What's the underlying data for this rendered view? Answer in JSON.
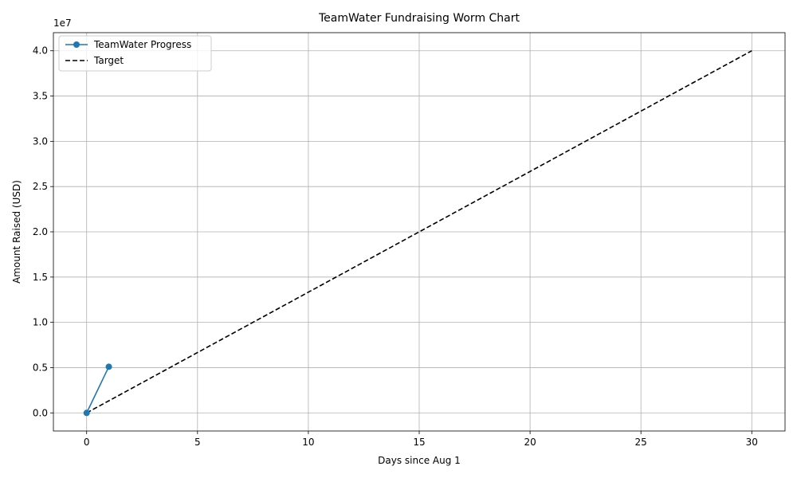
{
  "chart_data": {
    "type": "line",
    "title": "TeamWater Fundraising Worm Chart",
    "xlabel": "Days since Aug 1",
    "ylabel": "Amount Raised (USD)",
    "y_offset_text": "1e7",
    "xlim": [
      -1.5,
      31.5
    ],
    "ylim": [
      -2000000,
      42000000
    ],
    "x_ticks": [
      0,
      5,
      10,
      15,
      20,
      25,
      30
    ],
    "x_tick_labels": [
      "0",
      "5",
      "10",
      "15",
      "20",
      "25",
      "30"
    ],
    "y_ticks": [
      0,
      5000000,
      10000000,
      15000000,
      20000000,
      25000000,
      30000000,
      35000000,
      40000000
    ],
    "y_tick_labels": [
      "0.0",
      "0.5",
      "1.0",
      "1.5",
      "2.0",
      "2.5",
      "3.0",
      "3.5",
      "4.0"
    ],
    "grid": true,
    "legend_position": "top-left",
    "series": [
      {
        "name": "TeamWater Progress",
        "style": "solid",
        "marker": "circle",
        "color": "#1f77b4",
        "x": [
          0,
          1
        ],
        "y": [
          0,
          5100000
        ]
      },
      {
        "name": "Target",
        "style": "dashed",
        "marker": "none",
        "color": "#000000",
        "x": [
          0,
          30
        ],
        "y": [
          0,
          40000000
        ]
      }
    ]
  }
}
